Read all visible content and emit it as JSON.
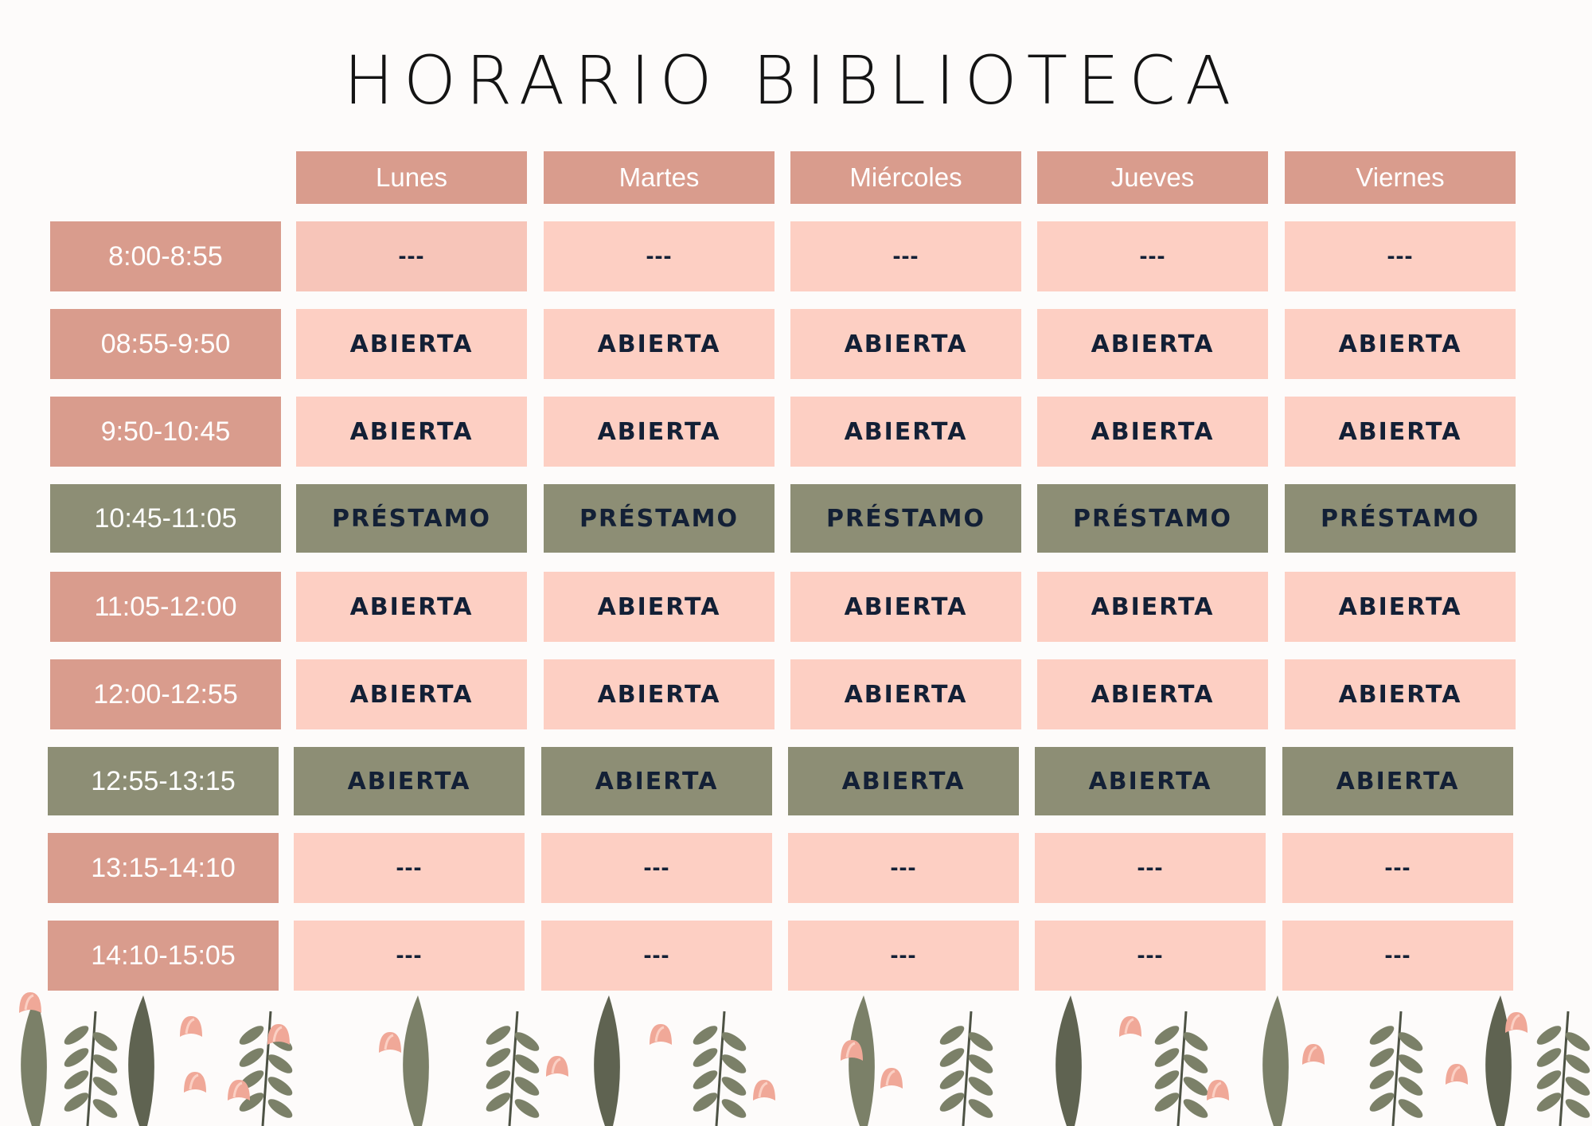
{
  "title": "HORARIO BIBLIOTECA",
  "days": [
    "Lunes",
    "Martes",
    "Miércoles",
    "Jueves",
    "Viernes"
  ],
  "rows": [
    {
      "time": "8:00-8:55",
      "color": "pink",
      "cells": [
        "---",
        "---",
        "---",
        "---",
        "---"
      ]
    },
    {
      "time": "08:55-9:50",
      "color": "pink",
      "cells": [
        "ABIERTA",
        "ABIERTA",
        "ABIERTA",
        "ABIERTA",
        "ABIERTA"
      ]
    },
    {
      "time": "9:50-10:45",
      "color": "pink",
      "cells": [
        "ABIERTA",
        "ABIERTA",
        "ABIERTA",
        "ABIERTA",
        "ABIERTA"
      ]
    },
    {
      "time": "10:45-11:05",
      "color": "green",
      "cells": [
        "PRÉSTAMO",
        "PRÉSTAMO",
        "PRÉSTAMO",
        "PRÉSTAMO",
        "PRÉSTAMO"
      ]
    },
    {
      "time": "11:05-12:00",
      "color": "pink",
      "cells": [
        "ABIERTA",
        "ABIERTA",
        "ABIERTA",
        "ABIERTA",
        "ABIERTA"
      ]
    },
    {
      "time": "12:00-12:55",
      "color": "pink",
      "cells": [
        "ABIERTA",
        "ABIERTA",
        "ABIERTA",
        "ABIERTA",
        "ABIERTA"
      ]
    },
    {
      "time": "12:55-13:15",
      "color": "green",
      "cells": [
        "ABIERTA",
        "ABIERTA",
        "ABIERTA",
        "ABIERTA",
        "ABIERTA"
      ]
    },
    {
      "time": "13:15-14:10",
      "color": "pink",
      "cells": [
        "---",
        "---",
        "---",
        "---",
        "---"
      ]
    },
    {
      "time": "14:10-15:05",
      "color": "pink",
      "cells": [
        "---",
        "---",
        "---",
        "---",
        "---"
      ]
    }
  ],
  "colors": {
    "header_pink": "#d99c8d",
    "cell_pink": "#fdcfc3",
    "green": "#8d8e75",
    "text_dark": "#132036"
  },
  "decoration": "flower-border-icon"
}
